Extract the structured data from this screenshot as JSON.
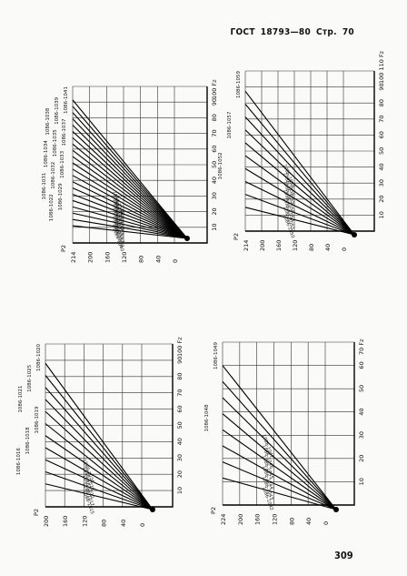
{
  "header": {
    "standard": "ГОСТ",
    "number": "18793—80",
    "page_word": "Стр.",
    "page_no": "70"
  },
  "footer": {
    "page_no": "309"
  },
  "charts": [
    {
      "id": "top-left",
      "a_axis_label": "100 Fz",
      "a_ticks": [
        "10",
        "20",
        "30",
        "40",
        "50",
        "60",
        "70",
        "80",
        "90"
      ],
      "d_axis_label": "Р2",
      "d_ticks": [
        "0",
        "40",
        "80",
        "120",
        "160",
        "200",
        "214"
      ],
      "line_labels": [
        "1086-1041",
        "1086-1039",
        "1086-1038",
        "1086-1037",
        "1086-1035",
        "1086-1034",
        "1086-1033",
        "1086-1032",
        "1086-1031",
        "1086-1029",
        "1086-1022"
      ],
      "inner_labels": [
        "1086-1036",
        "1086-1030",
        "1086-1026",
        "1086-1025",
        "1086-1024",
        "1086-1023",
        "1086-1021",
        "1086-1027",
        "1086-1028",
        "1086-1040"
      ]
    },
    {
      "id": "top-right",
      "a_axis_label": "100 110 Fz",
      "a_ticks": [
        "10",
        "20",
        "30",
        "40",
        "50",
        "60",
        "70",
        "80",
        "90"
      ],
      "d_axis_label": "Р2",
      "d_ticks": [
        "0",
        "40",
        "80",
        "120",
        "160",
        "200",
        "214"
      ],
      "line_labels": [
        "1086-1059",
        "1086-1057",
        "1086-1052"
      ],
      "inner_labels": [
        "1086-1058",
        "1086-1056",
        "1086-1055",
        "1086-1054",
        "1086-1053",
        "1086-1051",
        "1086-1050"
      ]
    },
    {
      "id": "bottom-left",
      "a_axis_label": "100 Fz",
      "a_ticks": [
        "10",
        "20",
        "30",
        "40",
        "50",
        "60",
        "70",
        "80",
        "90"
      ],
      "d_axis_label": "Р2",
      "d_ticks": [
        "0",
        "40",
        "80",
        "120",
        "160",
        "200"
      ],
      "line_labels": [
        "1086-1020",
        "1086-1025",
        "1086-1021",
        "1086-1019",
        "1086-1018",
        "1086-1016"
      ],
      "inner_labels": [
        "1086-1024",
        "1086-1023",
        "1086-1022",
        "1086-1017",
        "1086-1015"
      ]
    },
    {
      "id": "bottom-right",
      "a_axis_label": "70 Fz",
      "a_ticks": [
        "10",
        "20",
        "30",
        "40",
        "50",
        "60"
      ],
      "d_axis_label": "Р2",
      "d_ticks": [
        "0",
        "40",
        "80",
        "120",
        "160",
        "200",
        "224"
      ],
      "line_labels": [
        "1086-1049",
        "1086-1048"
      ],
      "inner_labels": [
        "1086-1047",
        "1086-1046",
        "1086-1045",
        "1086-1044",
        "1086-1043",
        "1086-1042"
      ]
    }
  ]
}
